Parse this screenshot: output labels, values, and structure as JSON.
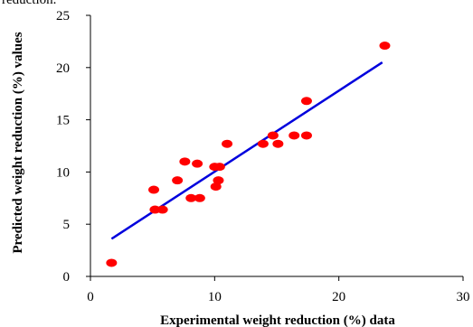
{
  "top_fragment": "reduction.",
  "chart_data": {
    "type": "scatter",
    "title": "",
    "xlabel": "Experimental weight reduction (%) data",
    "ylabel": "Predicted weight reduction (%) values",
    "xlim": [
      0,
      30
    ],
    "ylim": [
      0,
      25
    ],
    "x_ticks": [
      0,
      10,
      20,
      30
    ],
    "y_ticks": [
      0,
      5,
      10,
      15,
      20,
      25
    ],
    "grid": false,
    "legend": "none",
    "series": [
      {
        "kind": "points",
        "color": "#ff0000",
        "points": [
          {
            "x": 1.7,
            "y": 1.3
          },
          {
            "x": 5.1,
            "y": 8.3
          },
          {
            "x": 5.2,
            "y": 6.4
          },
          {
            "x": 5.8,
            "y": 6.4
          },
          {
            "x": 7.0,
            "y": 9.2
          },
          {
            "x": 7.6,
            "y": 11.0
          },
          {
            "x": 8.1,
            "y": 7.5
          },
          {
            "x": 8.6,
            "y": 10.8
          },
          {
            "x": 8.8,
            "y": 7.5
          },
          {
            "x": 10.0,
            "y": 10.5
          },
          {
            "x": 10.1,
            "y": 8.6
          },
          {
            "x": 10.3,
            "y": 9.2
          },
          {
            "x": 10.4,
            "y": 10.5
          },
          {
            "x": 11.0,
            "y": 12.7
          },
          {
            "x": 13.9,
            "y": 12.7
          },
          {
            "x": 14.7,
            "y": 13.5
          },
          {
            "x": 15.1,
            "y": 12.7
          },
          {
            "x": 16.4,
            "y": 13.5
          },
          {
            "x": 17.4,
            "y": 13.5
          },
          {
            "x": 17.4,
            "y": 16.8
          },
          {
            "x": 23.7,
            "y": 22.1
          }
        ]
      },
      {
        "kind": "fit-line",
        "color": "#0000dd",
        "x": [
          1.7,
          23.5
        ],
        "y": [
          3.6,
          20.5
        ]
      }
    ]
  }
}
